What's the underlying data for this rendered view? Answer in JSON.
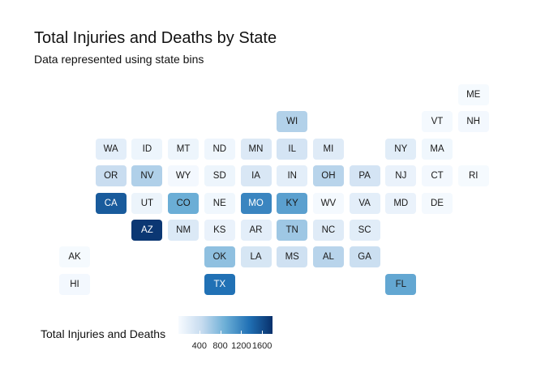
{
  "chart_data": {
    "type": "heatmap",
    "title": "Total Injuries and Deaths by State",
    "subtitle": "Data represented using state bins",
    "legend": {
      "title": "Total Injuries and Deaths",
      "position": "bottom-left",
      "ticks": [
        400,
        800,
        1200,
        1600
      ],
      "range": [
        0,
        1800
      ],
      "colors": [
        "#f7fbff",
        "#c6dbef",
        "#6baed6",
        "#2171b5",
        "#08306b"
      ]
    },
    "states": [
      {
        "abbr": "ME",
        "row": 0,
        "col": 11,
        "value": 20
      },
      {
        "abbr": "WI",
        "row": 1,
        "col": 6,
        "value": 550
      },
      {
        "abbr": "VT",
        "row": 1,
        "col": 10,
        "value": 30
      },
      {
        "abbr": "NH",
        "row": 1,
        "col": 11,
        "value": 40
      },
      {
        "abbr": "WA",
        "row": 2,
        "col": 1,
        "value": 180
      },
      {
        "abbr": "ID",
        "row": 2,
        "col": 2,
        "value": 90
      },
      {
        "abbr": "MT",
        "row": 2,
        "col": 3,
        "value": 90
      },
      {
        "abbr": "ND",
        "row": 2,
        "col": 4,
        "value": 70
      },
      {
        "abbr": "MN",
        "row": 2,
        "col": 5,
        "value": 250
      },
      {
        "abbr": "IL",
        "row": 2,
        "col": 6,
        "value": 320
      },
      {
        "abbr": "MI",
        "row": 2,
        "col": 7,
        "value": 220
      },
      {
        "abbr": "NY",
        "row": 2,
        "col": 9,
        "value": 200
      },
      {
        "abbr": "MA",
        "row": 2,
        "col": 10,
        "value": 60
      },
      {
        "abbr": "OR",
        "row": 3,
        "col": 1,
        "value": 420
      },
      {
        "abbr": "NV",
        "row": 3,
        "col": 2,
        "value": 560
      },
      {
        "abbr": "WY",
        "row": 3,
        "col": 3,
        "value": 40
      },
      {
        "abbr": "SD",
        "row": 3,
        "col": 4,
        "value": 90
      },
      {
        "abbr": "IA",
        "row": 3,
        "col": 5,
        "value": 280
      },
      {
        "abbr": "IN",
        "row": 3,
        "col": 6,
        "value": 180
      },
      {
        "abbr": "OH",
        "row": 3,
        "col": 7,
        "value": 520
      },
      {
        "abbr": "PA",
        "row": 3,
        "col": 8,
        "value": 320
      },
      {
        "abbr": "NJ",
        "row": 3,
        "col": 9,
        "value": 120
      },
      {
        "abbr": "CT",
        "row": 3,
        "col": 10,
        "value": 40
      },
      {
        "abbr": "RI",
        "row": 3,
        "col": 11,
        "value": 20
      },
      {
        "abbr": "CA",
        "row": 4,
        "col": 1,
        "value": 1500
      },
      {
        "abbr": "UT",
        "row": 4,
        "col": 2,
        "value": 100
      },
      {
        "abbr": "CO",
        "row": 4,
        "col": 3,
        "value": 900
      },
      {
        "abbr": "NE",
        "row": 4,
        "col": 4,
        "value": 60
      },
      {
        "abbr": "MO",
        "row": 4,
        "col": 5,
        "value": 1200
      },
      {
        "abbr": "KY",
        "row": 4,
        "col": 6,
        "value": 1000
      },
      {
        "abbr": "WV",
        "row": 4,
        "col": 7,
        "value": 30
      },
      {
        "abbr": "VA",
        "row": 4,
        "col": 8,
        "value": 180
      },
      {
        "abbr": "MD",
        "row": 4,
        "col": 9,
        "value": 120
      },
      {
        "abbr": "DE",
        "row": 4,
        "col": 10,
        "value": 30
      },
      {
        "abbr": "AZ",
        "row": 5,
        "col": 2,
        "value": 1750
      },
      {
        "abbr": "NM",
        "row": 5,
        "col": 3,
        "value": 260
      },
      {
        "abbr": "KS",
        "row": 5,
        "col": 4,
        "value": 120
      },
      {
        "abbr": "AR",
        "row": 5,
        "col": 5,
        "value": 180
      },
      {
        "abbr": "TN",
        "row": 5,
        "col": 6,
        "value": 650
      },
      {
        "abbr": "NC",
        "row": 5,
        "col": 7,
        "value": 220
      },
      {
        "abbr": "SC",
        "row": 5,
        "col": 8,
        "value": 200
      },
      {
        "abbr": "AK",
        "row": 6,
        "col": 0,
        "value": 20
      },
      {
        "abbr": "OK",
        "row": 6,
        "col": 4,
        "value": 720
      },
      {
        "abbr": "LA",
        "row": 6,
        "col": 5,
        "value": 300
      },
      {
        "abbr": "MS",
        "row": 6,
        "col": 6,
        "value": 370
      },
      {
        "abbr": "AL",
        "row": 6,
        "col": 7,
        "value": 520
      },
      {
        "abbr": "GA",
        "row": 6,
        "col": 8,
        "value": 400
      },
      {
        "abbr": "HI",
        "row": 7,
        "col": 0,
        "value": 40
      },
      {
        "abbr": "TX",
        "row": 7,
        "col": 4,
        "value": 1350
      },
      {
        "abbr": "FL",
        "row": 7,
        "col": 9,
        "value": 950
      }
    ]
  }
}
